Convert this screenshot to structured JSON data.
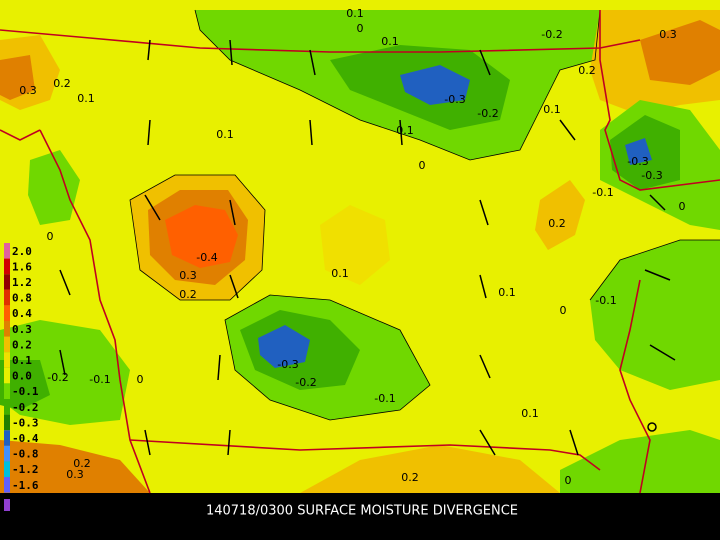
{
  "legend": {
    "entries": [
      {
        "label": "2.0",
        "color": "#e060a0"
      },
      {
        "label": "1.6",
        "color": "#d00000"
      },
      {
        "label": "1.2",
        "color": "#900000"
      },
      {
        "label": "0.8",
        "color": "#e03000"
      },
      {
        "label": "0.4",
        "color": "#ff6000"
      },
      {
        "label": "0.3",
        "color": "#e08000"
      },
      {
        "label": "0.2",
        "color": "#f0c000"
      },
      {
        "label": "0.1",
        "color": "#f0e000"
      },
      {
        "label": "0.0",
        "color": "#e8f000"
      },
      {
        "label": "-0.1",
        "color": "#70d800"
      },
      {
        "label": "-0.2",
        "color": "#40b000"
      },
      {
        "label": "-0.3",
        "color": "#208000"
      },
      {
        "label": "-0.4",
        "color": "#2060c0"
      },
      {
        "label": "-0.8",
        "color": "#4090ff"
      },
      {
        "label": "-1.2",
        "color": "#00c0e0"
      },
      {
        "label": "-1.6",
        "color": "#6060ff"
      }
    ]
  },
  "contour_labels": [
    "0.1",
    "0",
    "0.1",
    "-0.2",
    "0.3",
    "0.2",
    "0.3",
    "0.2",
    "0.1",
    "-0.3",
    "-0.2",
    "0.1",
    "0.1",
    "0.1",
    "0",
    "-0.3",
    "-0.3",
    "-0.1",
    "0",
    "0.2",
    "-0.4",
    "0.1",
    "0.3",
    "0.2",
    "0.1",
    "-0.1",
    "0",
    "0",
    "-0.3",
    "-0.2",
    "-0.1",
    "-0.2",
    "-0.1",
    "0",
    "0.1",
    "0.2",
    "0.3",
    "0.2",
    "0"
  ],
  "caption": "140718/0300 SURFACE MOISTURE DIVERGENCE"
}
